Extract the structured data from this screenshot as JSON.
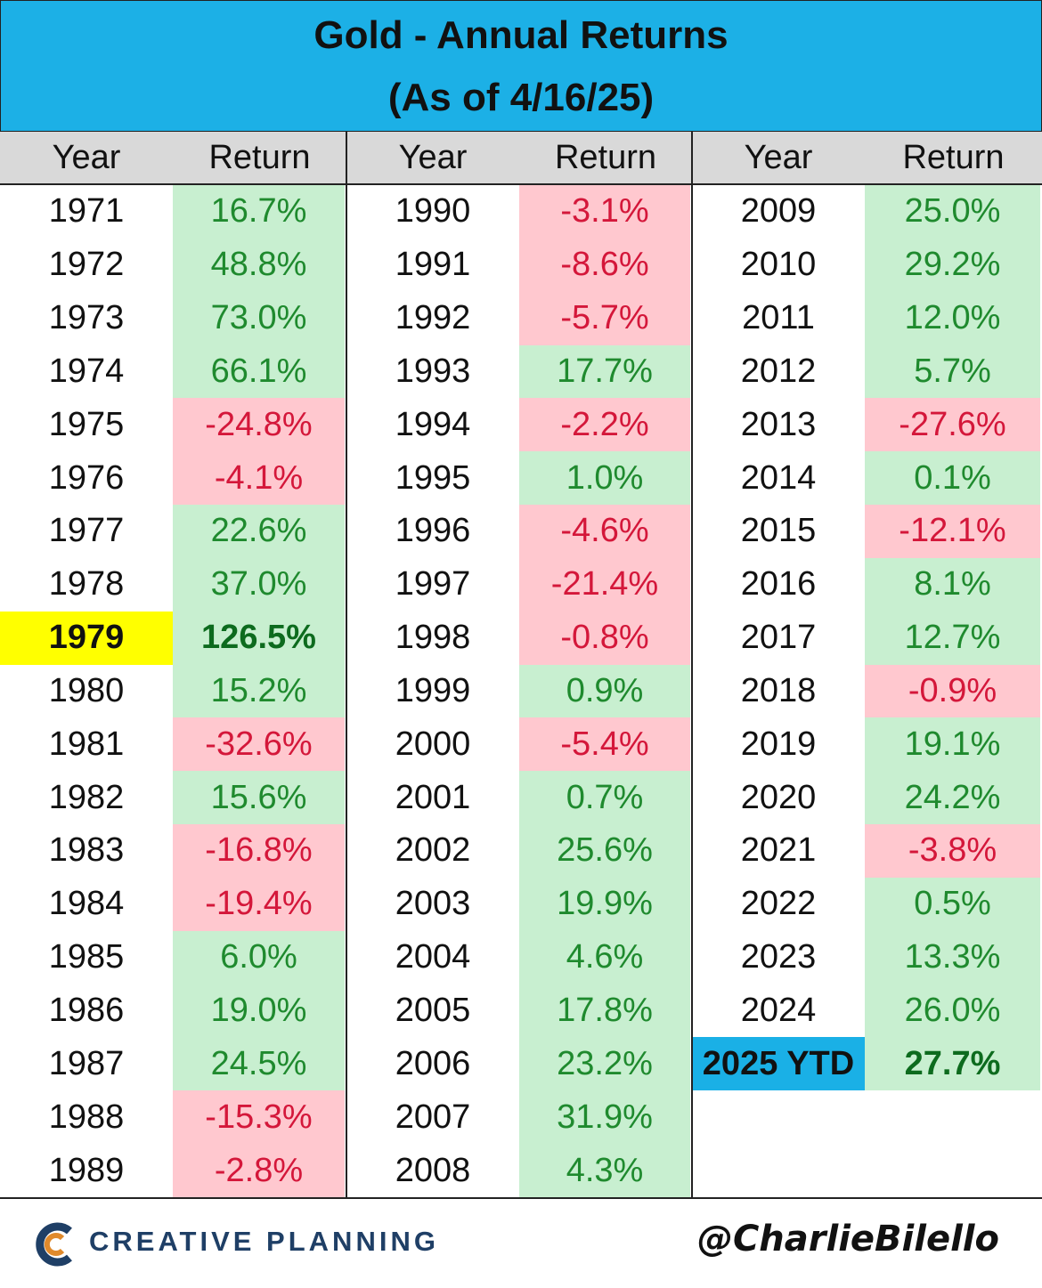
{
  "header": {
    "title": "Gold - Annual Returns",
    "subtitle": "(As of 4/16/25)"
  },
  "table": {
    "groups": [
      {
        "headers": [
          "Year",
          "Return"
        ],
        "rows": [
          {
            "year": "1971",
            "return": "16.7%"
          },
          {
            "year": "1972",
            "return": "48.8%"
          },
          {
            "year": "1973",
            "return": "73.0%"
          },
          {
            "year": "1974",
            "return": "66.1%"
          },
          {
            "year": "1975",
            "return": "-24.8%"
          },
          {
            "year": "1976",
            "return": "-4.1%"
          },
          {
            "year": "1977",
            "return": "22.6%"
          },
          {
            "year": "1978",
            "return": "37.0%"
          },
          {
            "year": "1979",
            "return": "126.5%",
            "highlight": "#ffff00"
          },
          {
            "year": "1980",
            "return": "15.2%"
          },
          {
            "year": "1981",
            "return": "-32.6%"
          },
          {
            "year": "1982",
            "return": "15.6%"
          },
          {
            "year": "1983",
            "return": "-16.8%"
          },
          {
            "year": "1984",
            "return": "-19.4%"
          },
          {
            "year": "1985",
            "return": "6.0%"
          },
          {
            "year": "1986",
            "return": "19.0%"
          },
          {
            "year": "1987",
            "return": "24.5%"
          },
          {
            "year": "1988",
            "return": "-15.3%"
          },
          {
            "year": "1989",
            "return": "-2.8%"
          }
        ]
      },
      {
        "headers": [
          "Year",
          "Return"
        ],
        "rows": [
          {
            "year": "1990",
            "return": "-3.1%"
          },
          {
            "year": "1991",
            "return": "-8.6%"
          },
          {
            "year": "1992",
            "return": "-5.7%"
          },
          {
            "year": "1993",
            "return": "17.7%"
          },
          {
            "year": "1994",
            "return": "-2.2%"
          },
          {
            "year": "1995",
            "return": "1.0%"
          },
          {
            "year": "1996",
            "return": "-4.6%"
          },
          {
            "year": "1997",
            "return": "-21.4%"
          },
          {
            "year": "1998",
            "return": "-0.8%"
          },
          {
            "year": "1999",
            "return": "0.9%"
          },
          {
            "year": "2000",
            "return": "-5.4%"
          },
          {
            "year": "2001",
            "return": "0.7%"
          },
          {
            "year": "2002",
            "return": "25.6%"
          },
          {
            "year": "2003",
            "return": "19.9%"
          },
          {
            "year": "2004",
            "return": "4.6%"
          },
          {
            "year": "2005",
            "return": "17.8%"
          },
          {
            "year": "2006",
            "return": "23.2%"
          },
          {
            "year": "2007",
            "return": "31.9%"
          },
          {
            "year": "2008",
            "return": "4.3%"
          }
        ]
      },
      {
        "headers": [
          "Year",
          "Return"
        ],
        "rows": [
          {
            "year": "2009",
            "return": "25.0%"
          },
          {
            "year": "2010",
            "return": "29.2%"
          },
          {
            "year": "2011",
            "return": "12.0%"
          },
          {
            "year": "2012",
            "return": "5.7%"
          },
          {
            "year": "2013",
            "return": "-27.6%"
          },
          {
            "year": "2014",
            "return": "0.1%"
          },
          {
            "year": "2015",
            "return": "-12.1%"
          },
          {
            "year": "2016",
            "return": "8.1%"
          },
          {
            "year": "2017",
            "return": "12.7%"
          },
          {
            "year": "2018",
            "return": "-0.9%"
          },
          {
            "year": "2019",
            "return": "19.1%"
          },
          {
            "year": "2020",
            "return": "24.2%"
          },
          {
            "year": "2021",
            "return": "-3.8%"
          },
          {
            "year": "2022",
            "return": "0.5%"
          },
          {
            "year": "2023",
            "return": "13.3%"
          },
          {
            "year": "2024",
            "return": "26.0%"
          },
          {
            "year": "2025 YTD",
            "return": "27.7%",
            "highlight": "#1ab0e6"
          }
        ]
      }
    ]
  },
  "footer": {
    "brand": "CREATIVE PLANNING",
    "handle": "@CharlieBilello"
  }
}
